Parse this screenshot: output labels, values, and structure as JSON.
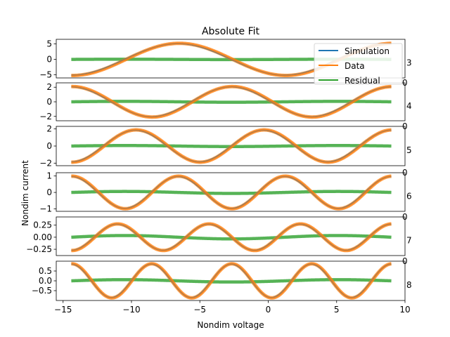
{
  "title": "Absolute Fit",
  "xlabel": "Nondim voltage",
  "ylabel": "Nondim current",
  "legend": {
    "entries": [
      {
        "label": "Simulation",
        "color": "#1f77b4"
      },
      {
        "label": "Data",
        "color": "#ff7f0e"
      },
      {
        "label": "Residual",
        "color": "#2ca02c"
      }
    ],
    "placement": "top-right"
  },
  "chart_data": [
    {
      "type": "line",
      "panel_label": "3",
      "right_tick_label": "0",
      "xlim": [
        -15.5,
        10
      ],
      "ylim": [
        -6,
        6.5
      ],
      "yticks": [
        5,
        0,
        -5
      ],
      "ytick_labels": [
        "5",
        "0",
        "−5"
      ],
      "harmonic": 3,
      "amplitude": 5.1,
      "phase": 0.0,
      "curve_offset": 0.0
    },
    {
      "type": "line",
      "panel_label": "4",
      "right_tick_label": "0",
      "xlim": [
        -15.5,
        10
      ],
      "ylim": [
        -2.6,
        2.6
      ],
      "yticks": [
        2,
        0,
        -2
      ],
      "ytick_labels": [
        "2",
        "0",
        "−2"
      ],
      "harmonic": 4,
      "amplitude": 2.05,
      "phase": 0.0,
      "curve_offset": 0.0
    },
    {
      "type": "line",
      "panel_label": "5",
      "right_tick_label": "0",
      "xlim": [
        -15.5,
        10
      ],
      "ylim": [
        -2.3,
        2.3
      ],
      "yticks": [
        2,
        0,
        -2
      ],
      "ytick_labels": [
        "2",
        "0",
        "−2"
      ],
      "harmonic": 5,
      "amplitude": 1.85,
      "phase": 0.0,
      "curve_offset": 0.0
    },
    {
      "type": "line",
      "panel_label": "6",
      "right_tick_label": "0",
      "xlim": [
        -15.5,
        10
      ],
      "ylim": [
        -1.15,
        1.2
      ],
      "yticks": [
        1,
        0,
        -1
      ],
      "ytick_labels": [
        "1",
        "0",
        "−1"
      ],
      "harmonic": 6,
      "amplitude": 0.97,
      "phase": 0.0,
      "curve_offset": 0.0
    },
    {
      "type": "line",
      "panel_label": "7",
      "right_tick_label": "0",
      "xlim": [
        -15.5,
        10
      ],
      "ylim": [
        -0.38,
        0.42
      ],
      "yticks": [
        0.25,
        0.0,
        -0.25
      ],
      "ytick_labels": [
        "0.25",
        "0.00",
        "−0.25"
      ],
      "harmonic": 7,
      "amplitude": 0.27,
      "phase": 0.0,
      "curve_offset": 0.0
    },
    {
      "type": "line",
      "panel_label": "8",
      "right_tick_label": "0",
      "xlim": [
        -15.5,
        10
      ],
      "ylim": [
        -1.0,
        1.0
      ],
      "yticks": [
        0.5,
        0.0,
        -0.5
      ],
      "ytick_labels": [
        "0.5",
        "0.0",
        "−0.5"
      ],
      "harmonic": 8,
      "amplitude": 0.85,
      "phase": 0.0,
      "curve_offset": 0.0
    }
  ],
  "x_range_data": [
    -14.4,
    9.0
  ],
  "xticks": [
    -15,
    -10,
    -5,
    0,
    5,
    10
  ],
  "xtick_labels": [
    "−15",
    "−10",
    "−5",
    "0",
    "5",
    "10"
  ]
}
